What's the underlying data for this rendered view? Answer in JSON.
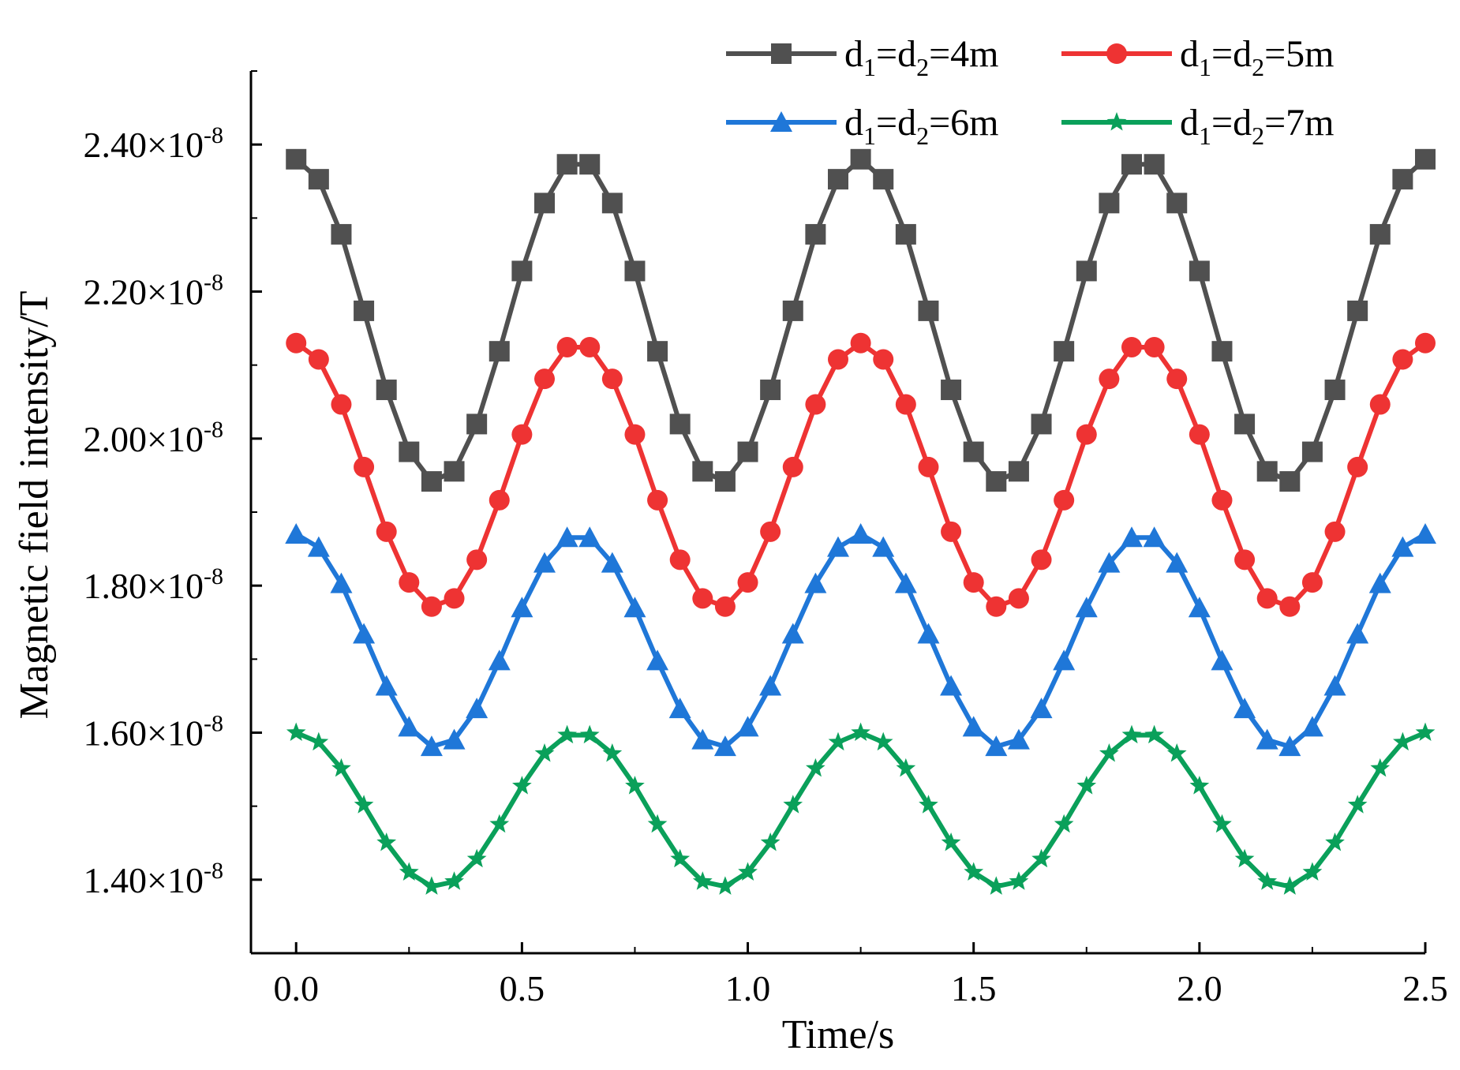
{
  "chart_data": {
    "type": "line",
    "xlabel": "Time/s",
    "ylabel": "Magnetic field intensity/T",
    "xlim": [
      -0.1,
      2.5
    ],
    "ylim": [
      1.3,
      2.5
    ],
    "y_unit_exponent": "-8",
    "x_ticks": [
      {
        "value": 0.0,
        "label": "0.0"
      },
      {
        "value": 0.5,
        "label": "0.5"
      },
      {
        "value": 1.0,
        "label": "1.0"
      },
      {
        "value": 1.5,
        "label": "1.5"
      },
      {
        "value": 2.0,
        "label": "2.0"
      },
      {
        "value": 2.5,
        "label": "2.5"
      }
    ],
    "y_ticks": [
      {
        "value": 1.4,
        "label": "1.40×10"
      },
      {
        "value": 1.6,
        "label": "1.60×10"
      },
      {
        "value": 1.8,
        "label": "1.80×10"
      },
      {
        "value": 2.0,
        "label": "2.00×10"
      },
      {
        "value": 2.2,
        "label": "2.20×10"
      },
      {
        "value": 2.4,
        "label": "2.40×10"
      }
    ],
    "series": [
      {
        "name": "d1=d2=4m",
        "legend_parts": [
          "d",
          "1",
          "=d",
          "2",
          "=4m"
        ],
        "marker": "square",
        "color": "#505050",
        "center": 2.16,
        "amplitude": 0.22
      },
      {
        "name": "d1=d2=5m",
        "legend_parts": [
          "d",
          "1",
          "=d",
          "2",
          "=5m"
        ],
        "marker": "circle",
        "color": "#ee3333",
        "center": 1.95,
        "amplitude": 0.18
      },
      {
        "name": "d1=d2=6m",
        "legend_parts": [
          "d",
          "1",
          "=d",
          "2",
          "=6m"
        ],
        "marker": "triangle",
        "color": "#1f77d8",
        "center": 1.725,
        "amplitude": 0.145
      },
      {
        "name": "d1=d2=7m",
        "legend_parts": [
          "d",
          "1",
          "=d",
          "2",
          "=7m"
        ],
        "marker": "star",
        "color": "#0aa05a",
        "center": 1.495,
        "amplitude": 0.105
      }
    ],
    "period_s": 0.625,
    "x_start": 0.0,
    "x_end": 2.5,
    "num_points": 51
  }
}
